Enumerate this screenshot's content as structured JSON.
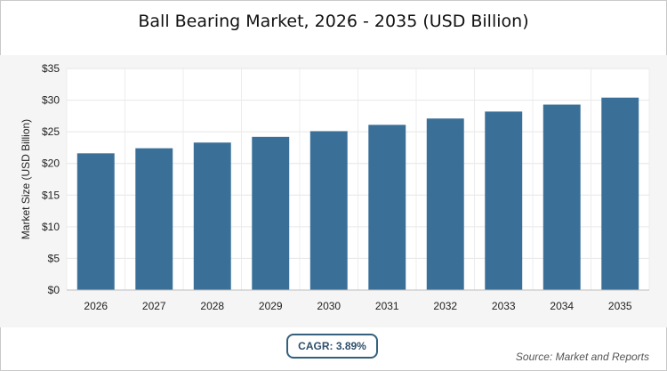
{
  "chart_data": {
    "type": "bar",
    "title": "Ball Bearing Market, 2026 - 2035 (USD Billion)",
    "xlabel": "",
    "ylabel": "Market Size (USD Billion)",
    "categories": [
      "2026",
      "2027",
      "2028",
      "2029",
      "2030",
      "2031",
      "2032",
      "2033",
      "2034",
      "2035"
    ],
    "values": [
      21.6,
      22.4,
      23.3,
      24.2,
      25.1,
      26.1,
      27.1,
      28.2,
      29.3,
      30.4
    ],
    "ylim": [
      0,
      35
    ],
    "yticks": [
      0,
      5,
      10,
      15,
      20,
      25,
      30,
      35
    ],
    "ytick_labels": [
      "$0",
      "$5",
      "$10",
      "$15",
      "$20",
      "$25",
      "$30",
      "$35"
    ],
    "grid": true,
    "bar_color": "#3a7098"
  },
  "footer": {
    "cagr": "CAGR: 3.89%",
    "source": "Source: Market and Reports"
  }
}
